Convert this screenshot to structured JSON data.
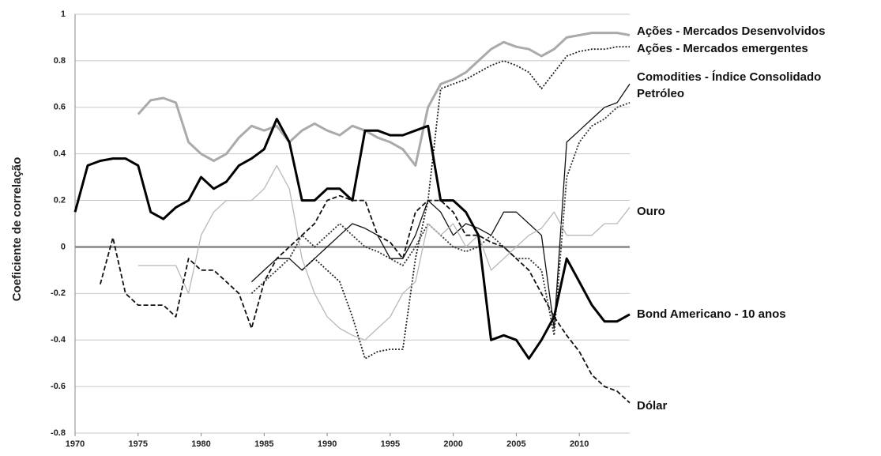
{
  "chart_data": {
    "type": "line",
    "y_label": "Coeficiente de correlação",
    "x": [
      1970,
      1971,
      1972,
      1973,
      1974,
      1975,
      1976,
      1977,
      1978,
      1979,
      1980,
      1981,
      1982,
      1983,
      1984,
      1985,
      1986,
      1987,
      1988,
      1989,
      1990,
      1991,
      1992,
      1993,
      1994,
      1995,
      1996,
      1997,
      1998,
      1999,
      2000,
      2001,
      2002,
      2003,
      2004,
      2005,
      2006,
      2007,
      2008,
      2009,
      2010,
      2011,
      2012,
      2013,
      2014
    ],
    "xlim": [
      1970,
      2014
    ],
    "xticks": [
      1970,
      1975,
      1980,
      1985,
      1990,
      1995,
      2000,
      2005,
      2010
    ],
    "ylim": [
      -0.8,
      1
    ],
    "yticks": [
      -0.8,
      -0.6,
      -0.4,
      -0.2,
      0,
      0.2,
      0.4,
      0.6,
      0.8,
      1
    ],
    "grid": true,
    "series": [
      {
        "name": "Ações - Mercados Desenvolvidos",
        "color": "#aaaaaa",
        "style": "thick",
        "values": [
          null,
          null,
          null,
          null,
          null,
          0.57,
          0.63,
          0.64,
          0.62,
          0.45,
          0.4,
          0.37,
          0.4,
          0.47,
          0.52,
          0.5,
          0.52,
          0.45,
          0.5,
          0.53,
          0.5,
          0.48,
          0.52,
          0.5,
          0.47,
          0.45,
          0.42,
          0.35,
          0.6,
          0.7,
          0.72,
          0.75,
          0.8,
          0.85,
          0.88,
          0.86,
          0.85,
          0.82,
          0.85,
          0.9,
          0.91,
          0.92,
          0.92,
          0.92,
          0.91
        ]
      },
      {
        "name": "Ações - Mercados emergentes",
        "color": "#222222",
        "style": "dotted",
        "values": [
          null,
          null,
          null,
          null,
          null,
          null,
          null,
          null,
          null,
          null,
          null,
          null,
          null,
          null,
          null,
          null,
          null,
          null,
          -0.1,
          -0.05,
          -0.1,
          -0.15,
          -0.3,
          -0.48,
          -0.45,
          -0.44,
          -0.44,
          -0.05,
          0.2,
          0.68,
          0.7,
          0.72,
          0.75,
          0.78,
          0.8,
          0.78,
          0.75,
          0.68,
          0.75,
          0.82,
          0.84,
          0.85,
          0.85,
          0.86,
          0.86
        ]
      },
      {
        "name": "Comodities - Índice Consolidado",
        "color": "#111111",
        "style": "thin",
        "values": [
          null,
          null,
          null,
          null,
          null,
          null,
          null,
          null,
          null,
          null,
          null,
          null,
          null,
          null,
          -0.15,
          -0.1,
          -0.05,
          -0.05,
          -0.1,
          -0.05,
          0.0,
          0.05,
          0.1,
          0.08,
          0.05,
          -0.05,
          -0.05,
          0.05,
          0.2,
          0.15,
          0.05,
          0.1,
          0.08,
          0.05,
          0.15,
          0.15,
          0.1,
          0.05,
          -0.35,
          0.45,
          0.5,
          0.55,
          0.6,
          0.62,
          0.7
        ]
      },
      {
        "name": "Petróleo",
        "color": "#333333",
        "style": "dotted",
        "values": [
          null,
          null,
          null,
          null,
          null,
          null,
          null,
          null,
          null,
          null,
          null,
          null,
          null,
          null,
          -0.2,
          -0.15,
          -0.1,
          -0.05,
          0.05,
          0.0,
          0.05,
          0.1,
          0.05,
          0.0,
          -0.02,
          -0.05,
          -0.08,
          0.0,
          0.1,
          0.05,
          0.0,
          -0.02,
          0.0,
          0.05,
          0.0,
          -0.05,
          -0.05,
          -0.1,
          -0.38,
          0.3,
          0.45,
          0.52,
          0.55,
          0.6,
          0.62
        ]
      },
      {
        "name": "Ouro",
        "color": "#b8b8b8",
        "style": "thin",
        "values": [
          null,
          null,
          null,
          null,
          null,
          -0.08,
          -0.08,
          -0.08,
          -0.08,
          -0.2,
          0.05,
          0.15,
          0.2,
          0.2,
          0.2,
          0.25,
          0.35,
          0.25,
          -0.05,
          -0.2,
          -0.3,
          -0.35,
          -0.38,
          -0.4,
          -0.35,
          -0.3,
          -0.2,
          -0.15,
          0.1,
          0.05,
          0.1,
          0.0,
          0.05,
          -0.1,
          -0.05,
          0.0,
          0.05,
          0.08,
          0.15,
          0.05,
          0.05,
          0.05,
          0.1,
          0.1,
          0.17
        ]
      },
      {
        "name": "Bond Americano - 10 anos",
        "color": "#000000",
        "style": "thick",
        "values": [
          0.15,
          0.35,
          0.37,
          0.38,
          0.38,
          0.35,
          0.15,
          0.12,
          0.17,
          0.2,
          0.3,
          0.25,
          0.28,
          0.35,
          0.38,
          0.42,
          0.55,
          0.45,
          0.2,
          0.2,
          0.25,
          0.25,
          0.2,
          0.5,
          0.5,
          0.48,
          0.48,
          0.5,
          0.52,
          0.2,
          0.2,
          0.15,
          0.05,
          -0.4,
          -0.38,
          -0.4,
          -0.48,
          -0.4,
          -0.3,
          -0.05,
          -0.15,
          -0.25,
          -0.32,
          -0.32,
          -0.29
        ]
      },
      {
        "name": "Dólar",
        "color": "#111111",
        "style": "dashed",
        "values": [
          null,
          null,
          -0.16,
          0.04,
          -0.2,
          -0.25,
          -0.25,
          -0.25,
          -0.3,
          -0.05,
          -0.1,
          -0.1,
          -0.15,
          -0.2,
          -0.35,
          -0.15,
          -0.05,
          0.0,
          0.05,
          0.1,
          0.2,
          0.22,
          0.2,
          0.2,
          0.05,
          0.02,
          -0.05,
          0.15,
          0.2,
          0.2,
          0.15,
          0.05,
          0.05,
          0.02,
          0.0,
          -0.05,
          -0.1,
          -0.2,
          -0.3,
          -0.38,
          -0.45,
          -0.55,
          -0.6,
          -0.62,
          -0.67
        ]
      }
    ]
  }
}
